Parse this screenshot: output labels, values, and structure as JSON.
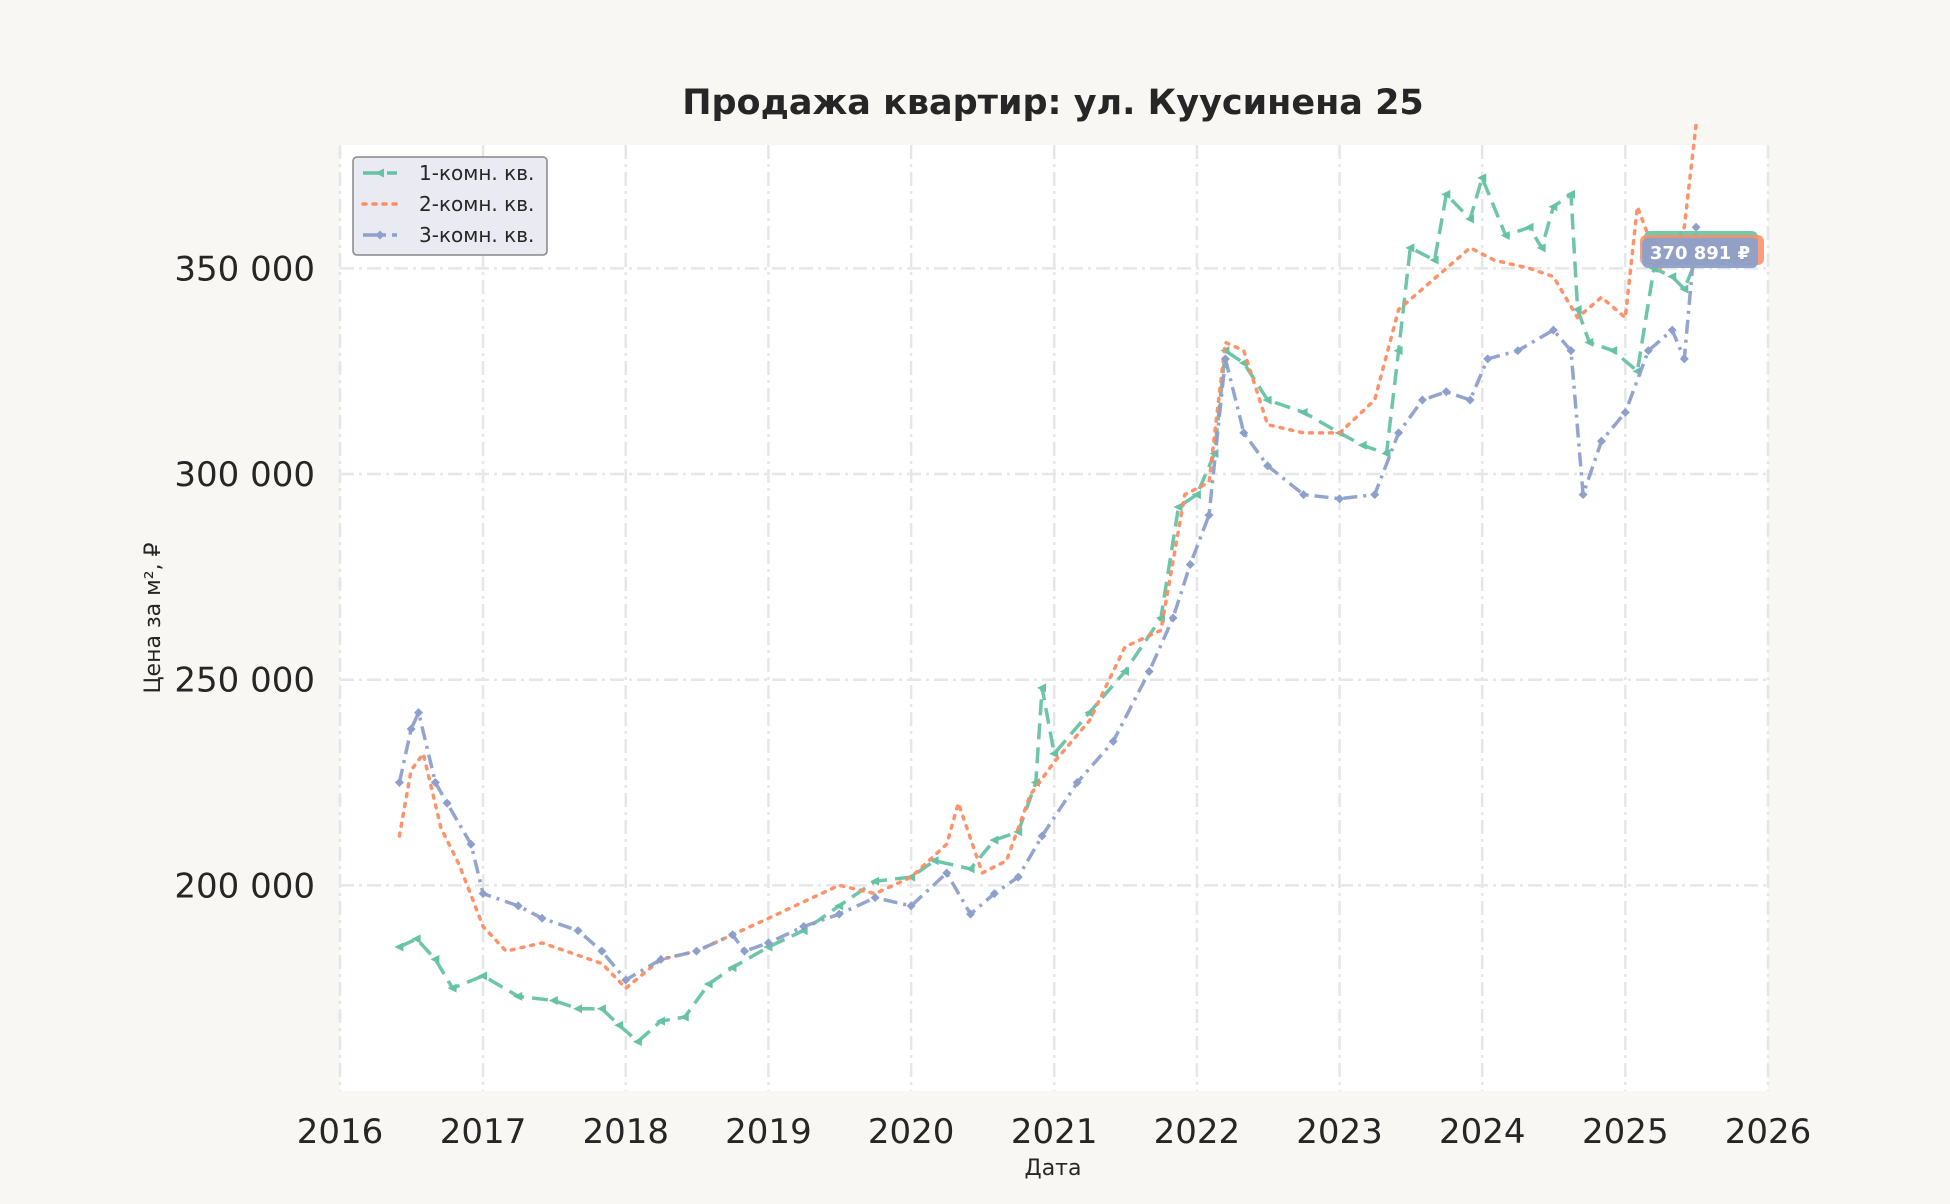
{
  "chart_data": {
    "type": "line",
    "title": "Продажа квартир: ул. Куусинена 25",
    "xlabel": "Дата",
    "ylabel": "Цена за м², ₽",
    "xlim": [
      "2016-01-01",
      "2026-01-01"
    ],
    "ylim": [
      150000,
      380000
    ],
    "x_ticks": [
      "2016",
      "2017",
      "2018",
      "2019",
      "2020",
      "2021",
      "2022",
      "2023",
      "2024",
      "2025",
      "2026"
    ],
    "y_ticks": [
      200000,
      250000,
      300000,
      350000
    ],
    "y_tick_labels": [
      "200 000",
      "250 000",
      "300 000",
      "350 000"
    ],
    "grid": true,
    "legend_position": "top-left",
    "end_label": "370 891 ₽",
    "series": [
      {
        "name": "1-комн. кв.",
        "color": "#66c2a5",
        "dash": "dashed",
        "marker": "triangle-left",
        "points": [
          [
            "2016-06-01",
            185000
          ],
          [
            "2016-07-15",
            187000
          ],
          [
            "2016-09-01",
            182000
          ],
          [
            "2016-10-15",
            175000
          ],
          [
            "2017-01-01",
            178000
          ],
          [
            "2017-04-01",
            173000
          ],
          [
            "2017-07-01",
            172000
          ],
          [
            "2017-09-01",
            170000
          ],
          [
            "2017-11-01",
            170000
          ],
          [
            "2017-12-15",
            166000
          ],
          [
            "2018-02-01",
            162000
          ],
          [
            "2018-04-01",
            167000
          ],
          [
            "2018-06-01",
            168000
          ],
          [
            "2018-08-01",
            176000
          ],
          [
            "2018-10-01",
            180000
          ],
          [
            "2019-01-01",
            185000
          ],
          [
            "2019-04-01",
            189000
          ],
          [
            "2019-07-01",
            195000
          ],
          [
            "2019-10-01",
            201000
          ],
          [
            "2020-01-01",
            202000
          ],
          [
            "2020-03-01",
            206000
          ],
          [
            "2020-06-01",
            204000
          ],
          [
            "2020-08-01",
            211000
          ],
          [
            "2020-10-01",
            213000
          ],
          [
            "2020-11-15",
            225000
          ],
          [
            "2020-12-01",
            248000
          ],
          [
            "2021-01-01",
            232000
          ],
          [
            "2021-04-01",
            242000
          ],
          [
            "2021-07-01",
            252000
          ],
          [
            "2021-10-01",
            265000
          ],
          [
            "2021-11-15",
            292000
          ],
          [
            "2022-01-01",
            295000
          ],
          [
            "2022-02-15",
            305000
          ],
          [
            "2022-03-15",
            330000
          ],
          [
            "2022-05-01",
            327000
          ],
          [
            "2022-07-01",
            318000
          ],
          [
            "2022-10-01",
            315000
          ],
          [
            "2023-01-01",
            310000
          ],
          [
            "2023-03-01",
            307000
          ],
          [
            "2023-05-01",
            305000
          ],
          [
            "2023-06-01",
            330000
          ],
          [
            "2023-07-01",
            355000
          ],
          [
            "2023-09-01",
            352000
          ],
          [
            "2023-10-01",
            368000
          ],
          [
            "2023-12-01",
            362000
          ],
          [
            "2024-01-01",
            372000
          ],
          [
            "2024-03-01",
            358000
          ],
          [
            "2024-05-01",
            360000
          ],
          [
            "2024-06-01",
            355000
          ],
          [
            "2024-07-01",
            365000
          ],
          [
            "2024-08-15",
            368000
          ],
          [
            "2024-09-01",
            340000
          ],
          [
            "2024-10-01",
            332000
          ],
          [
            "2024-12-01",
            330000
          ],
          [
            "2025-02-01",
            325000
          ],
          [
            "2025-03-15",
            350000
          ],
          [
            "2025-05-01",
            348000
          ],
          [
            "2025-06-01",
            345000
          ],
          [
            "2025-07-01",
            352000
          ]
        ]
      },
      {
        "name": "2-комн. кв.",
        "color": "#fc8d62",
        "dash": "dotted",
        "marker": "none",
        "points": [
          [
            "2016-06-01",
            212000
          ],
          [
            "2016-07-01",
            228000
          ],
          [
            "2016-08-01",
            232000
          ],
          [
            "2016-09-15",
            214000
          ],
          [
            "2016-11-01",
            205000
          ],
          [
            "2017-01-01",
            190000
          ],
          [
            "2017-03-01",
            184000
          ],
          [
            "2017-06-01",
            186000
          ],
          [
            "2017-09-01",
            183000
          ],
          [
            "2017-11-01",
            181000
          ],
          [
            "2018-01-01",
            175000
          ],
          [
            "2018-04-01",
            182000
          ],
          [
            "2018-07-01",
            184000
          ],
          [
            "2018-10-01",
            188000
          ],
          [
            "2019-01-01",
            192000
          ],
          [
            "2019-04-01",
            196000
          ],
          [
            "2019-07-01",
            200000
          ],
          [
            "2019-10-01",
            198000
          ],
          [
            "2020-01-01",
            202000
          ],
          [
            "2020-04-01",
            210000
          ],
          [
            "2020-05-01",
            220000
          ],
          [
            "2020-07-01",
            203000
          ],
          [
            "2020-09-01",
            206000
          ],
          [
            "2020-11-01",
            222000
          ],
          [
            "2021-01-01",
            230000
          ],
          [
            "2021-04-01",
            240000
          ],
          [
            "2021-07-01",
            258000
          ],
          [
            "2021-10-01",
            262000
          ],
          [
            "2021-12-01",
            295000
          ],
          [
            "2022-02-01",
            298000
          ],
          [
            "2022-03-15",
            332000
          ],
          [
            "2022-05-01",
            330000
          ],
          [
            "2022-07-01",
            312000
          ],
          [
            "2022-10-01",
            310000
          ],
          [
            "2023-01-01",
            310000
          ],
          [
            "2023-04-01",
            318000
          ],
          [
            "2023-06-01",
            340000
          ],
          [
            "2023-08-01",
            345000
          ],
          [
            "2023-10-01",
            350000
          ],
          [
            "2023-12-01",
            355000
          ],
          [
            "2024-02-01",
            352000
          ],
          [
            "2024-05-01",
            350000
          ],
          [
            "2024-07-01",
            348000
          ],
          [
            "2024-09-01",
            338000
          ],
          [
            "2024-11-01",
            343000
          ],
          [
            "2025-01-01",
            338000
          ],
          [
            "2025-02-01",
            365000
          ],
          [
            "2025-04-01",
            350000
          ],
          [
            "2025-06-01",
            360000
          ],
          [
            "2025-07-01",
            385000
          ]
        ]
      },
      {
        "name": "3-комн. кв.",
        "color": "#8da0cb",
        "dash": "dashdot",
        "marker": "diamond",
        "points": [
          [
            "2016-06-01",
            225000
          ],
          [
            "2016-07-01",
            238000
          ],
          [
            "2016-07-20",
            242000
          ],
          [
            "2016-09-01",
            225000
          ],
          [
            "2016-10-01",
            220000
          ],
          [
            "2016-12-01",
            210000
          ],
          [
            "2017-01-01",
            198000
          ],
          [
            "2017-04-01",
            195000
          ],
          [
            "2017-06-01",
            192000
          ],
          [
            "2017-09-01",
            189000
          ],
          [
            "2017-11-01",
            184000
          ],
          [
            "2018-01-01",
            177000
          ],
          [
            "2018-04-01",
            182000
          ],
          [
            "2018-07-01",
            184000
          ],
          [
            "2018-10-01",
            188000
          ],
          [
            "2018-11-01",
            184000
          ],
          [
            "2019-01-01",
            186000
          ],
          [
            "2019-04-01",
            190000
          ],
          [
            "2019-07-01",
            193000
          ],
          [
            "2019-10-01",
            197000
          ],
          [
            "2020-01-01",
            195000
          ],
          [
            "2020-04-01",
            203000
          ],
          [
            "2020-06-01",
            193000
          ],
          [
            "2020-08-01",
            198000
          ],
          [
            "2020-10-01",
            202000
          ],
          [
            "2020-12-01",
            212000
          ],
          [
            "2021-03-01",
            225000
          ],
          [
            "2021-06-01",
            235000
          ],
          [
            "2021-09-01",
            252000
          ],
          [
            "2021-11-01",
            265000
          ],
          [
            "2021-12-15",
            278000
          ],
          [
            "2022-02-01",
            290000
          ],
          [
            "2022-03-15",
            328000
          ],
          [
            "2022-05-01",
            310000
          ],
          [
            "2022-07-01",
            302000
          ],
          [
            "2022-10-01",
            295000
          ],
          [
            "2023-01-01",
            294000
          ],
          [
            "2023-04-01",
            295000
          ],
          [
            "2023-06-01",
            310000
          ],
          [
            "2023-08-01",
            318000
          ],
          [
            "2023-10-01",
            320000
          ],
          [
            "2023-12-01",
            318000
          ],
          [
            "2024-01-15",
            328000
          ],
          [
            "2024-04-01",
            330000
          ],
          [
            "2024-07-01",
            335000
          ],
          [
            "2024-08-15",
            330000
          ],
          [
            "2024-09-15",
            295000
          ],
          [
            "2024-11-01",
            308000
          ],
          [
            "2025-01-01",
            315000
          ],
          [
            "2025-03-01",
            330000
          ],
          [
            "2025-05-01",
            335000
          ],
          [
            "2025-06-01",
            328000
          ],
          [
            "2025-07-01",
            360000
          ]
        ]
      }
    ]
  }
}
